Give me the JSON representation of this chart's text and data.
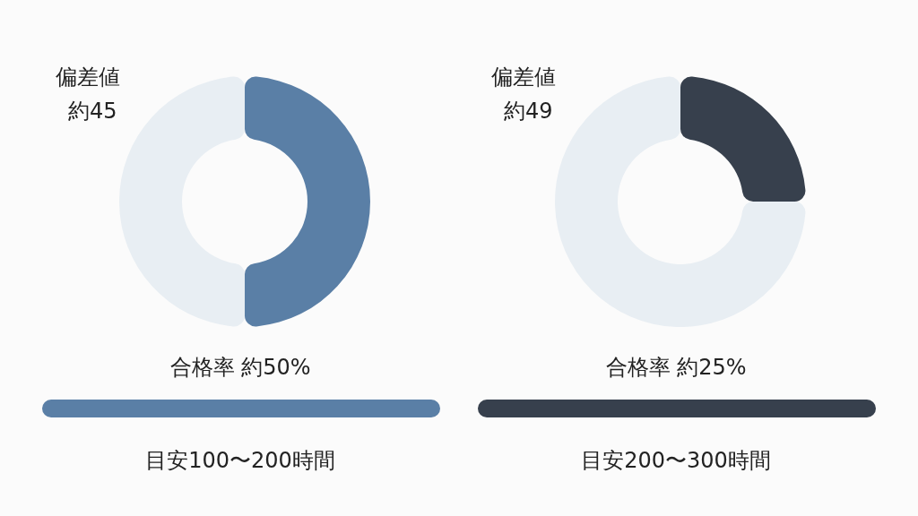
{
  "chart_data": [
    {
      "type": "donut",
      "categories": [
        null,
        null
      ],
      "values": [
        50,
        50
      ],
      "colors": [
        "#5a7fa6",
        "#e8eef3"
      ],
      "annotations": [
        "偏差値",
        "約45",
        "合格率 約50%",
        "目安100〜200時間"
      ]
    },
    {
      "type": "donut",
      "categories": [
        null,
        null
      ],
      "values": [
        25,
        75
      ],
      "colors": [
        "#37404d",
        "#e8eef3"
      ],
      "annotations": [
        "偏差値",
        "約49",
        "合格率 約25%",
        "目安200〜300時間"
      ]
    }
  ]
}
